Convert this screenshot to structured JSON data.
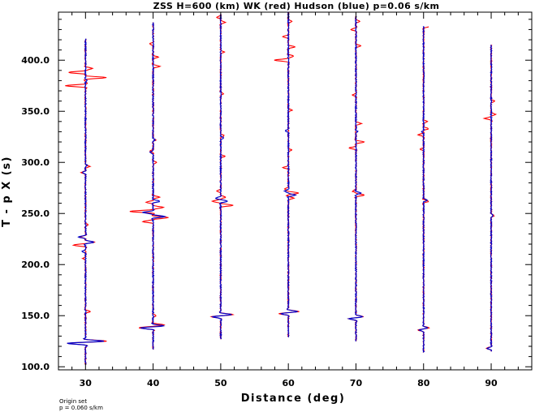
{
  "chart_data": {
    "type": "line",
    "title": "ZSS H=600 (km) WK (red) Hudson (blue) p=0.06 s/km",
    "xlabel": "Distance (deg)",
    "ylabel": "T - p X (s)",
    "xlim": [
      26,
      96
    ],
    "ylim": [
      97,
      447
    ],
    "x_ticks": [
      "30",
      "40",
      "50",
      "60",
      "70",
      "80",
      "90"
    ],
    "y_ticks": [
      "100.0",
      "150.0",
      "200.0",
      "250.0",
      "300.0",
      "350.0",
      "400.0"
    ],
    "grid": false,
    "legend": "none",
    "colors": {
      "WK": "#ff0000",
      "Hudson": "#0000c8"
    },
    "series": [
      {
        "name": "WK",
        "traces": [
          {
            "distance": 30,
            "start": 102,
            "end": 421,
            "pulses": [
              [
                123,
                -5
              ],
              [
                125,
                6
              ],
              [
                154,
                1.5
              ],
              [
                206,
                -0.7
              ],
              [
                219,
                -3.5
              ],
              [
                222,
                2.5
              ],
              [
                227,
                -1.5
              ],
              [
                239,
                0.7
              ],
              [
                290,
                -1.2
              ],
              [
                296,
                1.2
              ],
              [
                375,
                -6
              ],
              [
                383,
                6
              ],
              [
                388,
                -5
              ],
              [
                392,
                2
              ]
            ]
          },
          {
            "distance": 40,
            "start": 117,
            "end": 437,
            "pulses": [
              [
                138,
                -4
              ],
              [
                141,
                3
              ],
              [
                150,
                0.8
              ],
              [
                242,
                -3
              ],
              [
                246,
                4.5
              ],
              [
                252,
                -7
              ],
              [
                256,
                3
              ],
              [
                261,
                -2
              ],
              [
                266,
                2
              ],
              [
                300,
                1
              ],
              [
                311,
                -1
              ],
              [
                322,
                0.8
              ],
              [
                394,
                2
              ],
              [
                403,
                1.5
              ],
              [
                416,
                -1
              ]
            ]
          },
          {
            "distance": 50,
            "start": 127,
            "end": 445,
            "pulses": [
              [
                149,
                -2.5
              ],
              [
                151,
                3.5
              ],
              [
                258,
                3.5
              ],
              [
                262,
                -2.5
              ],
              [
                266,
                1.5
              ],
              [
                272,
                -1
              ],
              [
                306,
                1.2
              ],
              [
                326,
                1
              ],
              [
                367,
                0.8
              ],
              [
                408,
                1
              ],
              [
                437,
                1.3
              ],
              [
                442,
                -1.2
              ]
            ]
          },
          {
            "distance": 60,
            "start": 129,
            "end": 447,
            "pulses": [
              [
                152,
                -2.5
              ],
              [
                154,
                3
              ],
              [
                265,
                1.5
              ],
              [
                270,
                3
              ],
              [
                274,
                -1.2
              ],
              [
                295,
                -1.5
              ],
              [
                312,
                1
              ],
              [
                351,
                1
              ],
              [
                400,
                -4
              ],
              [
                404,
                1.5
              ],
              [
                413,
                2
              ],
              [
                423,
                -1.5
              ],
              [
                438,
                1.2
              ]
            ]
          },
          {
            "distance": 70,
            "start": 125,
            "end": 443,
            "pulses": [
              [
                147,
                -2
              ],
              [
                149,
                2
              ],
              [
                268,
                2.5
              ],
              [
                272,
                -1
              ],
              [
                314,
                -2
              ],
              [
                320,
                2.5
              ],
              [
                338,
                1.5
              ],
              [
                366,
                -1
              ],
              [
                414,
                1.5
              ],
              [
                430,
                -1.5
              ],
              [
                438,
                1
              ]
            ]
          },
          {
            "distance": 80,
            "start": 114,
            "end": 433,
            "pulses": [
              [
                136,
                -1.5
              ],
              [
                138,
                1.5
              ],
              [
                262,
                1.5
              ],
              [
                313,
                -1
              ],
              [
                327,
                -1.5
              ],
              [
                333,
                1.5
              ],
              [
                340,
                1.2
              ],
              [
                433,
                1.5
              ]
            ]
          },
          {
            "distance": 90,
            "start": 115,
            "end": 415,
            "pulses": [
              [
                118,
                -1.5
              ],
              [
                248,
                0.8
              ],
              [
                343,
                -2
              ],
              [
                347,
                1.2
              ],
              [
                360,
                1
              ]
            ]
          }
        ]
      },
      {
        "name": "Hudson",
        "traces": [
          {
            "distance": 30,
            "start": 102,
            "end": 421,
            "pulses": [
              [
                123,
                -5
              ],
              [
                125,
                5
              ],
              [
                213,
                -1
              ],
              [
                222,
                2.5
              ],
              [
                227,
                -2
              ],
              [
                290,
                -1
              ],
              [
                297,
                0.5
              ],
              [
                380,
                0.5
              ]
            ]
          },
          {
            "distance": 40,
            "start": 117,
            "end": 437,
            "pulses": [
              [
                138,
                -3.5
              ],
              [
                140,
                3
              ],
              [
                247,
                3.5
              ],
              [
                251,
                -3
              ],
              [
                262,
                2
              ],
              [
                310,
                -1
              ],
              [
                322,
                0.5
              ]
            ]
          },
          {
            "distance": 50,
            "start": 127,
            "end": 445,
            "pulses": [
              [
                149,
                -2
              ],
              [
                151,
                3
              ],
              [
                262,
                2
              ],
              [
                265,
                -1.5
              ],
              [
                324,
                0.8
              ]
            ]
          },
          {
            "distance": 60,
            "start": 129,
            "end": 447,
            "pulses": [
              [
                152,
                -2
              ],
              [
                154,
                2.5
              ],
              [
                268,
                2
              ],
              [
                272,
                -1
              ],
              [
                331,
                -0.8
              ]
            ]
          },
          {
            "distance": 70,
            "start": 125,
            "end": 443,
            "pulses": [
              [
                147,
                -1.8
              ],
              [
                149,
                1.8
              ],
              [
                270,
                1.5
              ],
              [
                330,
                0.5
              ]
            ]
          },
          {
            "distance": 80,
            "start": 114,
            "end": 433,
            "pulses": [
              [
                136,
                -1.2
              ],
              [
                138,
                1.2
              ],
              [
                263,
                1.2
              ],
              [
                330,
                -0.5
              ]
            ]
          },
          {
            "distance": 90,
            "start": 115,
            "end": 415,
            "pulses": [
              [
                118,
                -1.2
              ],
              [
                248,
                0.6
              ]
            ]
          }
        ]
      }
    ],
    "annotations": [
      "Origin set",
      "p = 0.060 s/km"
    ]
  }
}
